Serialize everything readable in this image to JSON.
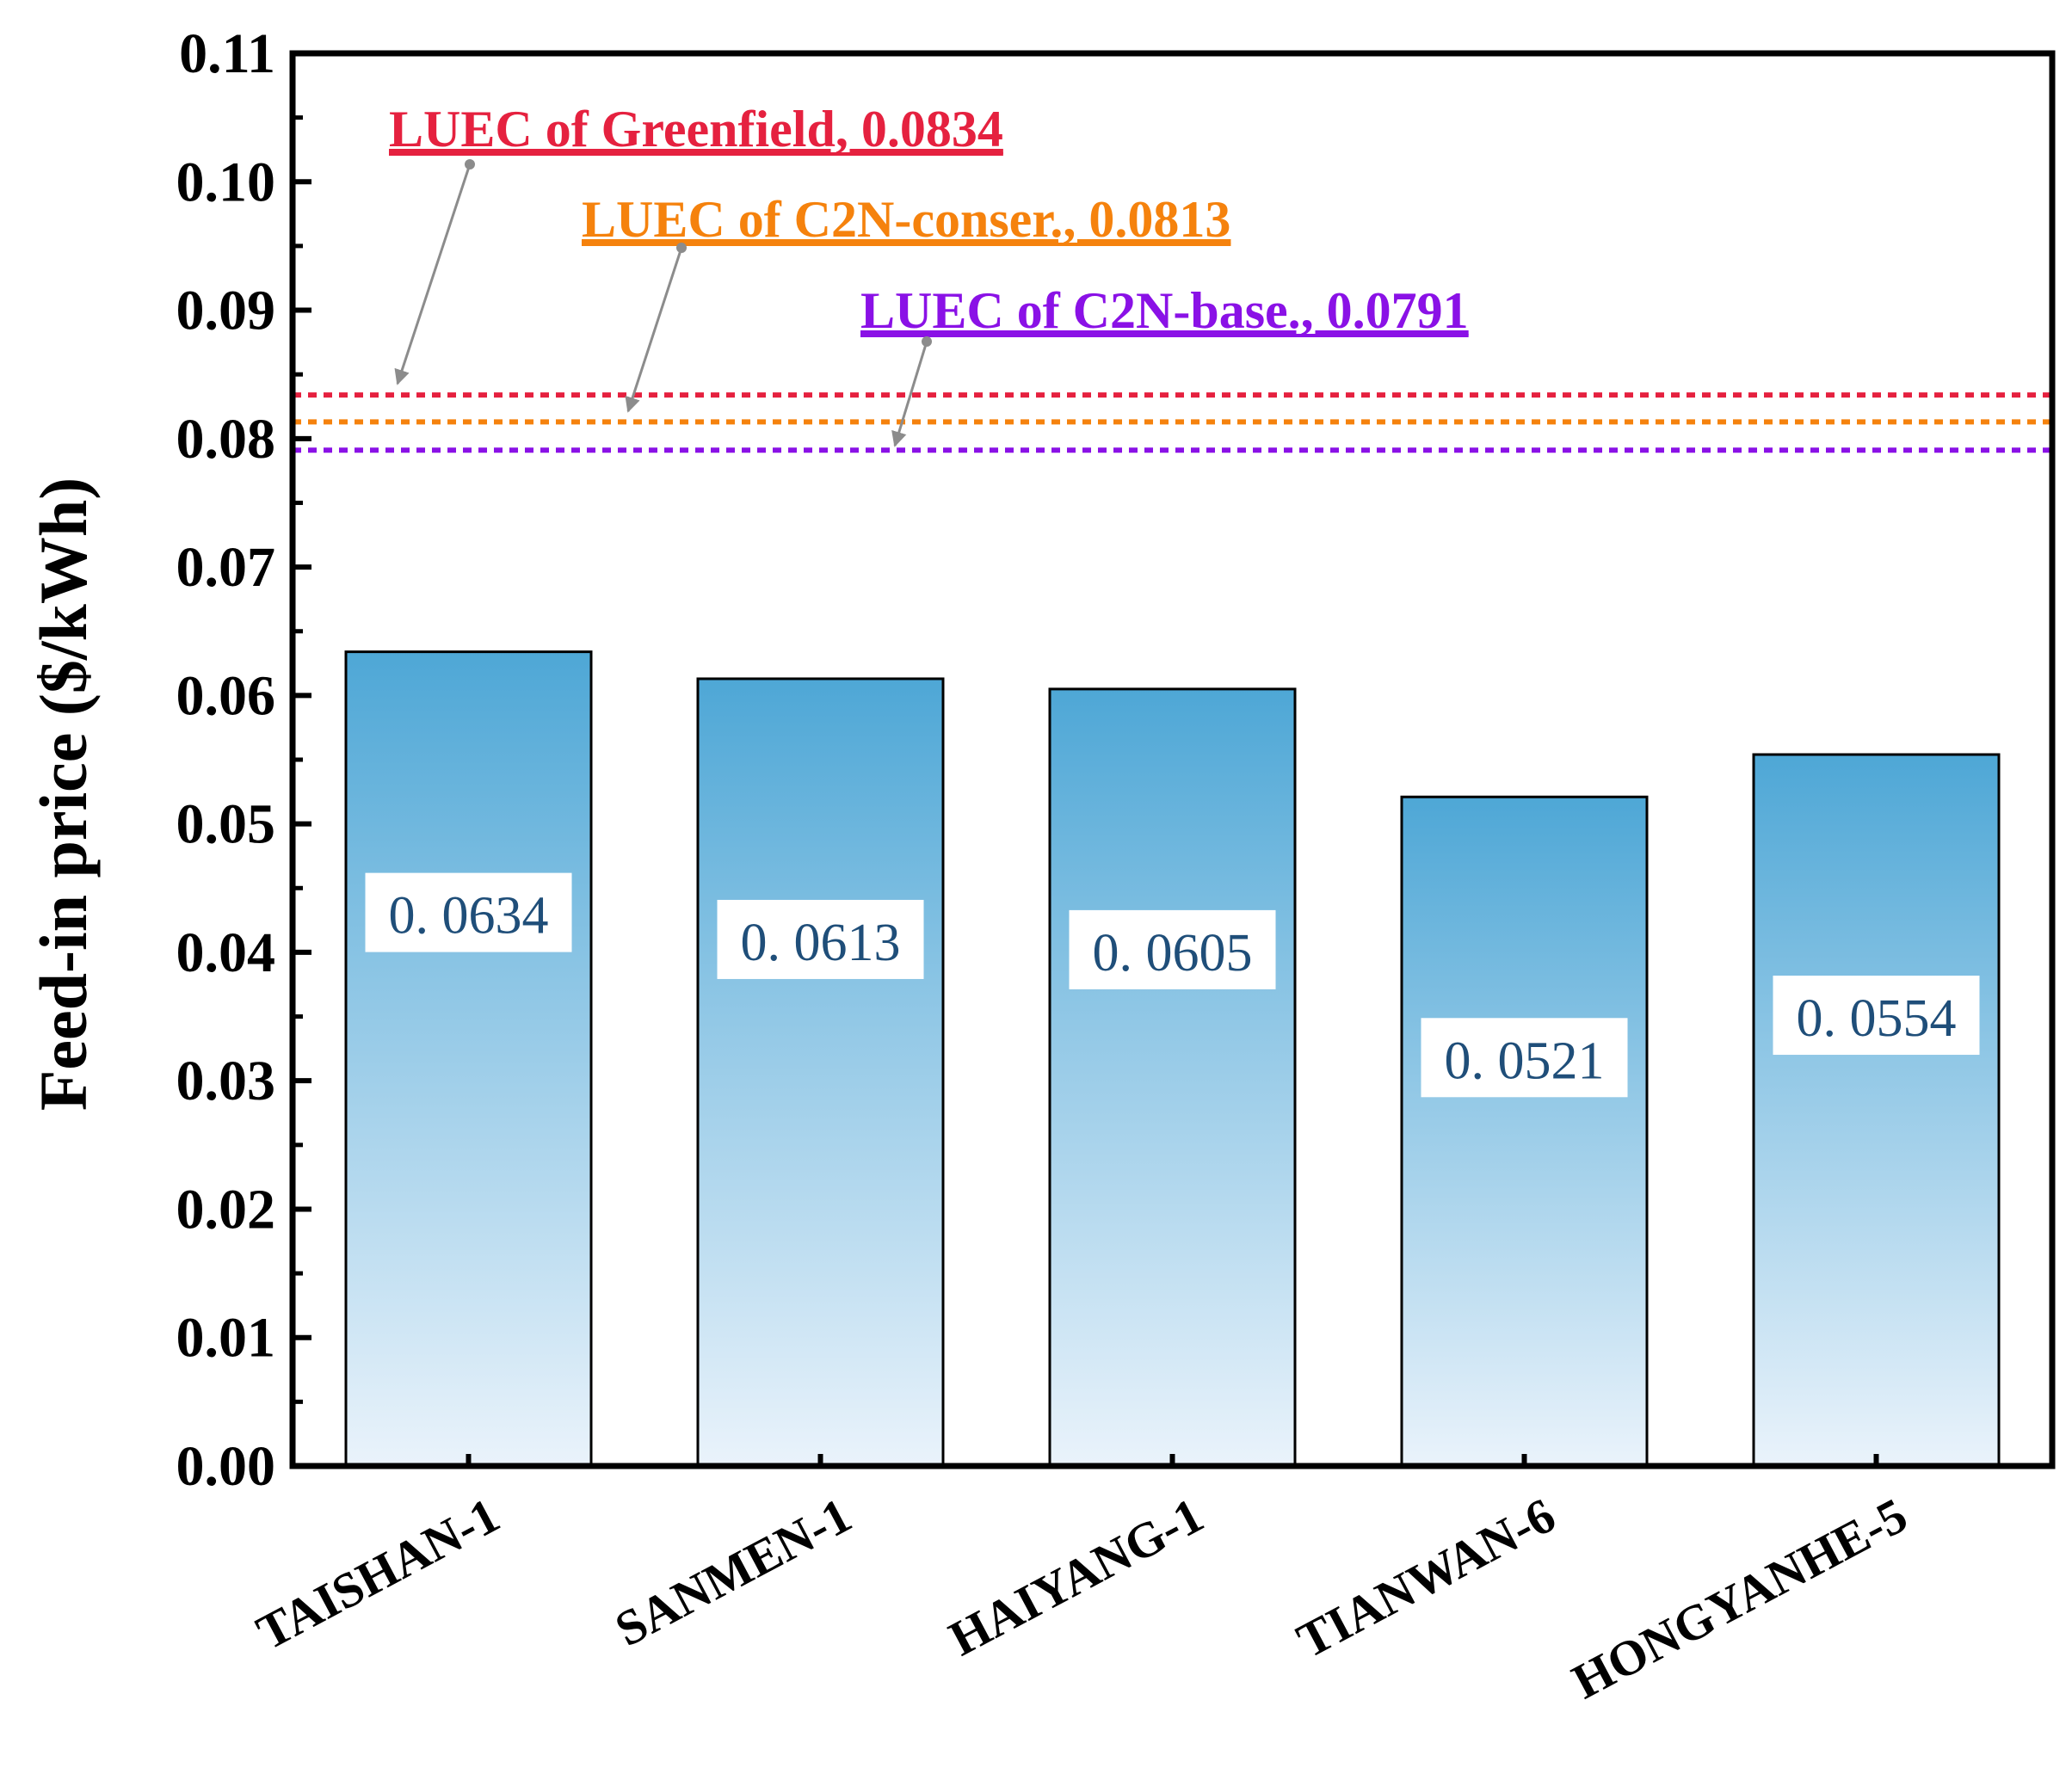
{
  "chart_data": {
    "type": "bar",
    "title": "",
    "xlabel": "",
    "ylabel": "Feed-in price ($/kWh)",
    "ylim": [
      0,
      0.11
    ],
    "yticks": [
      "0.00",
      "0.01",
      "0.02",
      "0.03",
      "0.04",
      "0.05",
      "0.06",
      "0.07",
      "0.08",
      "0.09",
      "0.10",
      "0.11"
    ],
    "categories": [
      "TAISHAN-1",
      "SANMEN-1",
      "HAIYANG-1",
      "TIANWAN-6",
      "HONGYANHE-5"
    ],
    "values": [
      0.0634,
      0.0613,
      0.0605,
      0.0521,
      0.0554
    ],
    "value_labels": [
      "0. 0634",
      "0. 0613",
      "0. 0605",
      "0. 0521",
      "0. 0554"
    ],
    "bar_color_top": "#4ea7d6",
    "bar_color_bottom": "#eaf3fb",
    "reference_lines": [
      {
        "label": "LUEC of Greenfield, 0.0834",
        "value": 0.0834,
        "color": "#e5213f",
        "style": "dotted"
      },
      {
        "label": "LUEC of C2N-conser., 0.0813",
        "value": 0.0813,
        "color": "#f5820d",
        "style": "dotted"
      },
      {
        "label": "LUEC of C2N-base., 0.0791",
        "value": 0.0791,
        "color": "#8a11e6",
        "style": "dotted"
      }
    ],
    "annotation_arrow_color": "#8c8c8c"
  }
}
